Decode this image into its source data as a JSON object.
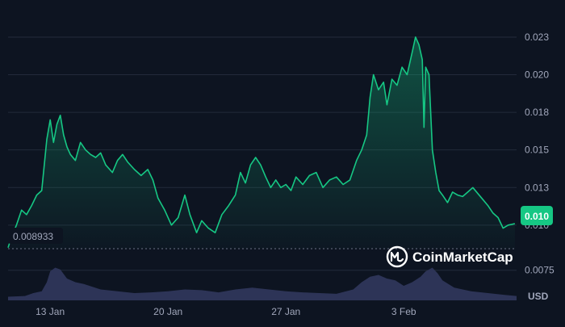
{
  "colors": {
    "background": "#0d1421",
    "grid": "#222a3a",
    "line": "#16c784",
    "volume": "#2d3457",
    "badge": "#16c784",
    "text": "#a1a7bb"
  },
  "brand": {
    "name": "CoinMarketCap",
    "logo_icon": "coinmarketcap-logo-icon"
  },
  "chart_data": {
    "type": "line",
    "currency_label": "USD",
    "current_price_label": "0.010",
    "baseline_label": "0.008933",
    "baseline_value": 0.008933,
    "ylim": [
      0.0055,
      0.0245
    ],
    "y_ticks": [
      {
        "value": 0.023,
        "label": "0.023"
      },
      {
        "value": 0.0205,
        "label": "0.020"
      },
      {
        "value": 0.018,
        "label": "0.018"
      },
      {
        "value": 0.0155,
        "label": "0.015"
      },
      {
        "value": 0.013,
        "label": "0.013"
      },
      {
        "value": 0.0105,
        "label": "0.010"
      },
      {
        "value": 0.0075,
        "label": "0.0075"
      }
    ],
    "x_ticks": [
      {
        "day": 2,
        "label": "13 Jan"
      },
      {
        "day": 9,
        "label": "20 Jan"
      },
      {
        "day": 16,
        "label": "27 Jan"
      },
      {
        "day": 23,
        "label": "3 Feb"
      }
    ],
    "x_range": [
      -0.5,
      29.7
    ],
    "volume_max": 1.0,
    "series": [
      {
        "values": [
          [
            -0.5,
            0.009
          ],
          [
            -0.3,
            0.0097
          ],
          [
            0.0,
            0.0105
          ],
          [
            0.3,
            0.0115
          ],
          [
            0.6,
            0.0112
          ],
          [
            0.9,
            0.0118
          ],
          [
            1.2,
            0.0125
          ],
          [
            1.5,
            0.0128
          ],
          [
            1.8,
            0.0162
          ],
          [
            2.0,
            0.0175
          ],
          [
            2.2,
            0.016
          ],
          [
            2.4,
            0.0172
          ],
          [
            2.6,
            0.0178
          ],
          [
            2.8,
            0.0165
          ],
          [
            3.0,
            0.0157
          ],
          [
            3.2,
            0.0152
          ],
          [
            3.5,
            0.0148
          ],
          [
            3.8,
            0.016
          ],
          [
            4.1,
            0.0155
          ],
          [
            4.4,
            0.0152
          ],
          [
            4.7,
            0.015
          ],
          [
            5.0,
            0.0153
          ],
          [
            5.3,
            0.0145
          ],
          [
            5.7,
            0.014
          ],
          [
            6.0,
            0.0148
          ],
          [
            6.3,
            0.0152
          ],
          [
            6.6,
            0.0147
          ],
          [
            7.0,
            0.0142
          ],
          [
            7.4,
            0.0138
          ],
          [
            7.8,
            0.0142
          ],
          [
            8.1,
            0.0135
          ],
          [
            8.4,
            0.0123
          ],
          [
            8.8,
            0.0115
          ],
          [
            9.2,
            0.0105
          ],
          [
            9.6,
            0.011
          ],
          [
            10.0,
            0.0125
          ],
          [
            10.3,
            0.0112
          ],
          [
            10.7,
            0.01
          ],
          [
            11.0,
            0.0108
          ],
          [
            11.4,
            0.0103
          ],
          [
            11.8,
            0.01
          ],
          [
            12.2,
            0.0112
          ],
          [
            12.6,
            0.0118
          ],
          [
            13.0,
            0.0125
          ],
          [
            13.3,
            0.014
          ],
          [
            13.6,
            0.0133
          ],
          [
            13.9,
            0.0145
          ],
          [
            14.2,
            0.015
          ],
          [
            14.5,
            0.0145
          ],
          [
            14.8,
            0.0137
          ],
          [
            15.1,
            0.013
          ],
          [
            15.4,
            0.0135
          ],
          [
            15.7,
            0.013
          ],
          [
            16.0,
            0.0132
          ],
          [
            16.3,
            0.0128
          ],
          [
            16.6,
            0.0137
          ],
          [
            17.0,
            0.0132
          ],
          [
            17.4,
            0.0138
          ],
          [
            17.8,
            0.014
          ],
          [
            18.2,
            0.013
          ],
          [
            18.6,
            0.0135
          ],
          [
            19.0,
            0.0137
          ],
          [
            19.4,
            0.0132
          ],
          [
            19.8,
            0.0135
          ],
          [
            20.2,
            0.0148
          ],
          [
            20.5,
            0.0155
          ],
          [
            20.8,
            0.0165
          ],
          [
            21.0,
            0.019
          ],
          [
            21.2,
            0.0205
          ],
          [
            21.5,
            0.0195
          ],
          [
            21.8,
            0.02
          ],
          [
            22.0,
            0.0185
          ],
          [
            22.3,
            0.0202
          ],
          [
            22.6,
            0.0198
          ],
          [
            22.9,
            0.021
          ],
          [
            23.2,
            0.0205
          ],
          [
            23.5,
            0.022
          ],
          [
            23.7,
            0.023
          ],
          [
            23.9,
            0.0225
          ],
          [
            24.1,
            0.0215
          ],
          [
            24.2,
            0.017
          ],
          [
            24.3,
            0.021
          ],
          [
            24.5,
            0.0205
          ],
          [
            24.7,
            0.0155
          ],
          [
            24.9,
            0.014
          ],
          [
            25.1,
            0.0128
          ],
          [
            25.3,
            0.0125
          ],
          [
            25.6,
            0.012
          ],
          [
            25.9,
            0.0127
          ],
          [
            26.2,
            0.0125
          ],
          [
            26.5,
            0.0124
          ],
          [
            26.8,
            0.0127
          ],
          [
            27.1,
            0.013
          ],
          [
            27.4,
            0.0126
          ],
          [
            27.7,
            0.0122
          ],
          [
            28.0,
            0.0118
          ],
          [
            28.3,
            0.0113
          ],
          [
            28.6,
            0.011
          ],
          [
            28.9,
            0.0103
          ],
          [
            29.2,
            0.0105
          ],
          [
            29.6,
            0.0106
          ]
        ]
      }
    ],
    "volume": [
      [
        -0.5,
        0.1
      ],
      [
        0.5,
        0.12
      ],
      [
        1.0,
        0.2
      ],
      [
        1.5,
        0.25
      ],
      [
        1.8,
        0.5
      ],
      [
        2.0,
        0.8
      ],
      [
        2.3,
        0.9
      ],
      [
        2.6,
        0.85
      ],
      [
        3.0,
        0.6
      ],
      [
        3.5,
        0.5
      ],
      [
        4.0,
        0.45
      ],
      [
        5.0,
        0.3
      ],
      [
        6.0,
        0.25
      ],
      [
        7.0,
        0.2
      ],
      [
        8.0,
        0.22
      ],
      [
        9.0,
        0.25
      ],
      [
        10.0,
        0.3
      ],
      [
        11.0,
        0.28
      ],
      [
        12.0,
        0.22
      ],
      [
        13.0,
        0.3
      ],
      [
        14.0,
        0.35
      ],
      [
        15.0,
        0.3
      ],
      [
        16.0,
        0.25
      ],
      [
        17.0,
        0.22
      ],
      [
        18.0,
        0.2
      ],
      [
        19.0,
        0.18
      ],
      [
        20.0,
        0.3
      ],
      [
        20.5,
        0.5
      ],
      [
        21.0,
        0.65
      ],
      [
        21.5,
        0.7
      ],
      [
        22.0,
        0.6
      ],
      [
        22.5,
        0.55
      ],
      [
        23.0,
        0.4
      ],
      [
        23.5,
        0.5
      ],
      [
        24.0,
        0.65
      ],
      [
        24.3,
        0.8
      ],
      [
        24.7,
        0.9
      ],
      [
        25.0,
        0.75
      ],
      [
        25.3,
        0.55
      ],
      [
        26.0,
        0.35
      ],
      [
        27.0,
        0.25
      ],
      [
        28.0,
        0.2
      ],
      [
        29.0,
        0.15
      ],
      [
        29.7,
        0.12
      ]
    ]
  }
}
